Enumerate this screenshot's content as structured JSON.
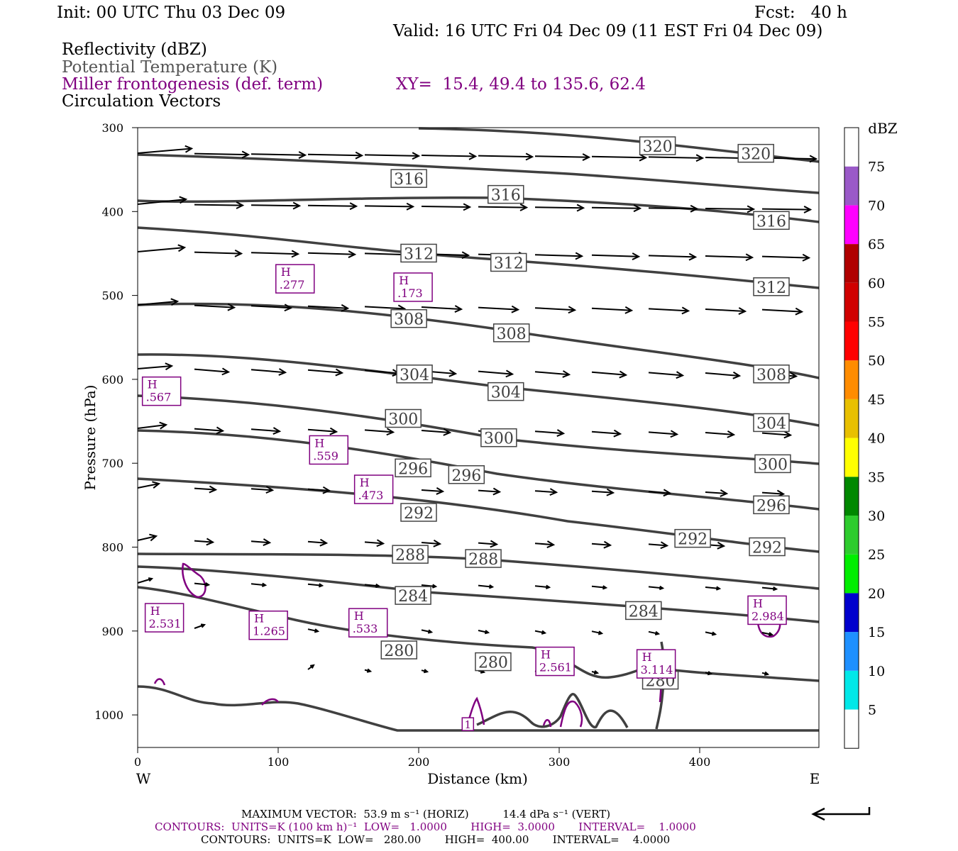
{
  "header": {
    "init": "Init: 00 UTC Thu 03 Dec 09",
    "fcst": "Fcst:   40 h",
    "valid": "Valid: 16 UTC Fri 04 Dec 09 (11 EST Fri 04 Dec 09)",
    "field1": "Reflectivity (dBZ)",
    "field2": "Potential Temperature (K)",
    "field3": "Miller frontogenesis (def. term)",
    "xy": "XY=  15.4, 49.4 to 135.6, 62.4",
    "field4": "Circulation Vectors"
  },
  "axes": {
    "ylabel": "Pressure (hPa)",
    "xlabel": "Distance (km)",
    "west": "W",
    "east": "E",
    "y_ticks": [
      "300",
      "400",
      "500",
      "600",
      "700",
      "800",
      "900",
      "1000"
    ],
    "x_ticks": [
      "0",
      "100",
      "200",
      "300",
      "400"
    ]
  },
  "colorbar": {
    "unit": "dBZ",
    "labels": [
      "75",
      "70",
      "65",
      "60",
      "55",
      "50",
      "45",
      "40",
      "35",
      "30",
      "25",
      "20",
      "15",
      "10",
      "5"
    ],
    "colors": [
      "#ffffff",
      "#00e8e8",
      "#1e90ff",
      "#0000cd",
      "#00ee00",
      "#2ecc2e",
      "#008800",
      "#ffff00",
      "#e8c000",
      "#ff8c00",
      "#ff0000",
      "#d00000",
      "#b00000",
      "#ff00ff",
      "#9a59c8",
      "#ffffff"
    ]
  },
  "theta_labels": [
    {
      "text": "320",
      "x": 370,
      "p": 322
    },
    {
      "text": "320",
      "x": 440,
      "p": 331
    },
    {
      "text": "316",
      "x": 193,
      "p": 361
    },
    {
      "text": "316",
      "x": 262,
      "p": 380
    },
    {
      "text": "316",
      "x": 451,
      "p": 411
    },
    {
      "text": "312",
      "x": 200,
      "p": 450
    },
    {
      "text": "312",
      "x": 264,
      "p": 461
    },
    {
      "text": "312",
      "x": 451,
      "p": 490
    },
    {
      "text": "308",
      "x": 193,
      "p": 528
    },
    {
      "text": "308",
      "x": 266,
      "p": 545
    },
    {
      "text": "308",
      "x": 451,
      "p": 594
    },
    {
      "text": "304",
      "x": 197,
      "p": 594
    },
    {
      "text": "304",
      "x": 262,
      "p": 615
    },
    {
      "text": "304",
      "x": 451,
      "p": 652
    },
    {
      "text": "300",
      "x": 189,
      "p": 647
    },
    {
      "text": "300",
      "x": 257,
      "p": 670
    },
    {
      "text": "300",
      "x": 452,
      "p": 701
    },
    {
      "text": "296",
      "x": 196,
      "p": 706
    },
    {
      "text": "296",
      "x": 234,
      "p": 714
    },
    {
      "text": "296",
      "x": 451,
      "p": 750
    },
    {
      "text": "292",
      "x": 200,
      "p": 759
    },
    {
      "text": "292",
      "x": 395,
      "p": 790
    },
    {
      "text": "292",
      "x": 448,
      "p": 800
    },
    {
      "text": "288",
      "x": 194,
      "p": 809
    },
    {
      "text": "288",
      "x": 246,
      "p": 814
    },
    {
      "text": "284",
      "x": 196,
      "p": 858
    },
    {
      "text": "284",
      "x": 360,
      "p": 876
    },
    {
      "text": "280",
      "x": 186,
      "p": 923
    },
    {
      "text": "280",
      "x": 253,
      "p": 937
    },
    {
      "text": "280",
      "x": 372,
      "p": 959
    }
  ],
  "fronto_labels": [
    {
      "h": "H",
      "v": ".277",
      "x": 112,
      "p": 481
    },
    {
      "h": "H",
      "v": ".173",
      "x": 196,
      "p": 491
    },
    {
      "h": "H",
      "v": ".567",
      "x": 17,
      "p": 615
    },
    {
      "h": "H",
      "v": ".559",
      "x": 136,
      "p": 685
    },
    {
      "h": "H",
      "v": ".473",
      "x": 168,
      "p": 732
    },
    {
      "h": "H",
      "v": "2.531",
      "x": 19,
      "p": 885
    },
    {
      "h": "H",
      "v": "1.265",
      "x": 93,
      "p": 894
    },
    {
      "h": "H",
      "v": ".533",
      "x": 164,
      "p": 891
    },
    {
      "h": "H",
      "v": "2.561",
      "x": 297,
      "p": 937
    },
    {
      "h": "H",
      "v": "3.114",
      "x": 369,
      "p": 940
    },
    {
      "h": "H",
      "v": "2.984",
      "x": 448,
      "p": 876
    },
    {
      "h": "",
      "v": "1",
      "x": 235,
      "p": 1011
    }
  ],
  "footer": {
    "line1": "MAXIMUM VECTOR:  53.9 m s⁻¹ (HORIZ)          14.4 dPa s⁻¹ (VERT)",
    "line2": "CONTOURS:  UNITS=K (100 km h)⁻¹  LOW=   1.0000       HIGH=  3.0000       INTERVAL=    1.0000",
    "line3": "CONTOURS:  UNITS=K  LOW=   280.00       HIGH=  400.00       INTERVAL=    4.0000"
  }
}
